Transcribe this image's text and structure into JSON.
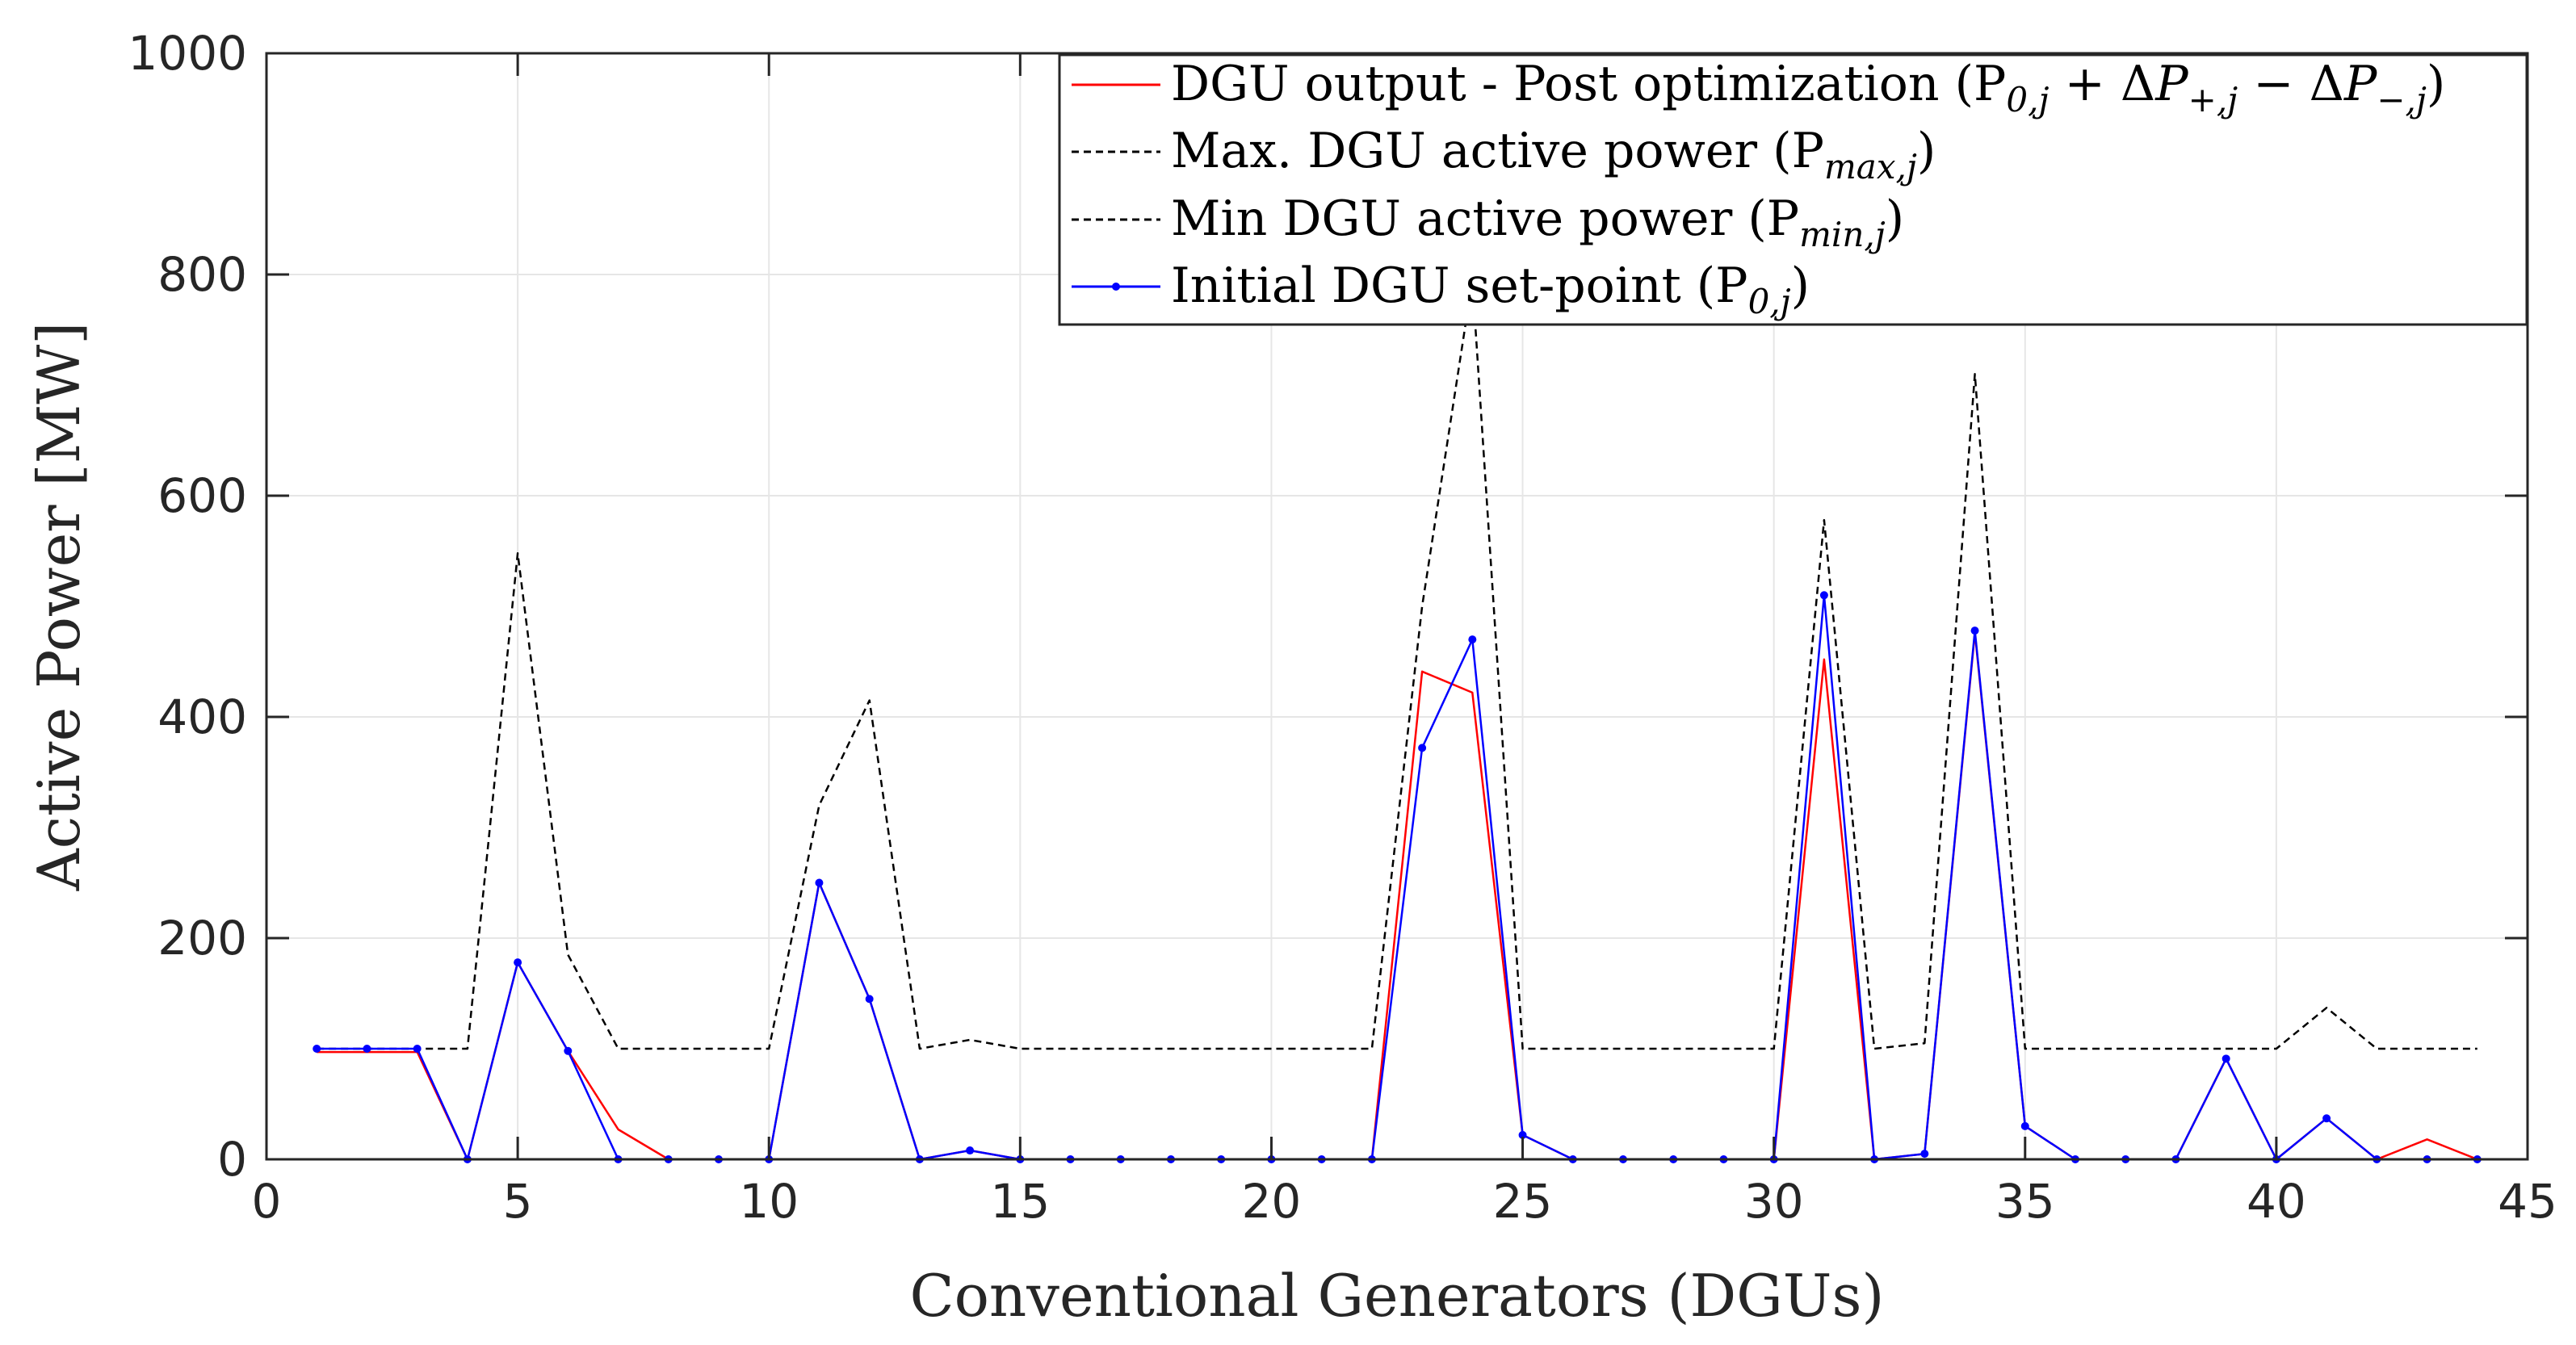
{
  "chart_data": {
    "type": "line",
    "title": "",
    "xlabel": "Conventional Generators (DGUs)",
    "ylabel": "Active Power [MW]",
    "xlim": [
      0,
      45
    ],
    "ylim": [
      0,
      1000
    ],
    "xticks": [
      0,
      5,
      10,
      15,
      20,
      25,
      30,
      35,
      40,
      45
    ],
    "yticks": [
      0,
      200,
      400,
      600,
      800,
      1000
    ],
    "grid": true,
    "legend_position": "top-right",
    "x": [
      1,
      2,
      3,
      4,
      5,
      6,
      7,
      8,
      9,
      10,
      11,
      12,
      13,
      14,
      15,
      16,
      17,
      18,
      19,
      20,
      21,
      22,
      23,
      24,
      25,
      26,
      27,
      28,
      29,
      30,
      31,
      32,
      33,
      34,
      35,
      36,
      37,
      38,
      39,
      40,
      41,
      42,
      43,
      44
    ],
    "series": [
      {
        "name": "DGU output - Post optimization (P0,j + ΔP+,j − ΔP−,j)",
        "legend": "DGU output - Post optimization (P",
        "color": "#ff0000",
        "style": "solid",
        "marker": "none",
        "values": [
          97,
          97,
          97,
          0,
          178,
          98,
          27,
          0,
          0,
          0,
          250,
          145,
          0,
          8,
          0,
          0,
          0,
          0,
          0,
          0,
          0,
          0,
          441,
          422,
          22,
          0,
          0,
          0,
          0,
          0,
          452,
          0,
          5,
          476,
          30,
          0,
          0,
          0,
          91,
          0,
          37,
          0,
          18,
          0
        ]
      },
      {
        "name": "Max. DGU active power (Pmax,j)",
        "legend": "Max. DGU active power (P",
        "color": "#000000",
        "style": "dashed",
        "marker": "none",
        "values": [
          100,
          100,
          100,
          100,
          548,
          185,
          100,
          100,
          100,
          100,
          320,
          415,
          100,
          108,
          100,
          100,
          100,
          100,
          100,
          100,
          100,
          100,
          500,
          795,
          100,
          100,
          100,
          100,
          100,
          100,
          578,
          100,
          105,
          710,
          100,
          100,
          100,
          100,
          100,
          100,
          137,
          100,
          100,
          100
        ]
      },
      {
        "name": "Min DGU active power (Pmin,j)",
        "legend": "Min DGU active power (P",
        "color": "#000000",
        "style": "dashed",
        "marker": "none",
        "values": [
          0,
          0,
          0,
          0,
          0,
          0,
          0,
          0,
          0,
          0,
          0,
          0,
          0,
          0,
          0,
          0,
          0,
          0,
          0,
          0,
          0,
          0,
          0,
          0,
          0,
          0,
          0,
          0,
          0,
          0,
          0,
          0,
          0,
          0,
          0,
          0,
          0,
          0,
          0,
          0,
          0,
          0,
          0,
          0
        ]
      },
      {
        "name": "Initial DGU set-point (P0,j)",
        "legend": "Initial DGU set-point (P",
        "color": "#0000ff",
        "style": "solid",
        "marker": "dot",
        "values": [
          100,
          100,
          100,
          0,
          178,
          98,
          0,
          0,
          0,
          0,
          250,
          145,
          0,
          8,
          0,
          0,
          0,
          0,
          0,
          0,
          0,
          0,
          372,
          470,
          22,
          0,
          0,
          0,
          0,
          0,
          510,
          0,
          5,
          478,
          30,
          0,
          0,
          0,
          91,
          0,
          37,
          0,
          0,
          0
        ]
      }
    ]
  }
}
